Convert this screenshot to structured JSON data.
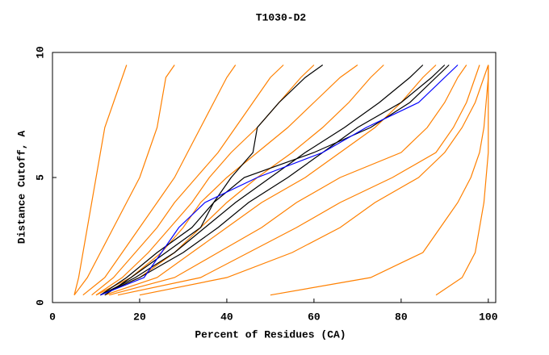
{
  "chart_data": {
    "type": "line",
    "title": "T1030-D2",
    "x_label": "Percent of Residues (CA)",
    "y_label": "Distance Cutoff, A",
    "xlim": [
      0,
      101.7
    ],
    "ylim": [
      0,
      10
    ],
    "xticks": [
      0,
      20,
      40,
      60,
      80,
      100
    ],
    "yticks": [
      0,
      5,
      10
    ],
    "grid": false,
    "series": [
      {
        "color": "#ff8000",
        "x": [
          5,
          6,
          7,
          8,
          9,
          10,
          11,
          12,
          14,
          16,
          17
        ],
        "values": [
          0.3,
          1,
          2,
          3,
          4,
          5,
          6,
          7,
          8,
          9,
          9.5
        ]
      },
      {
        "color": "#ff8000",
        "x": [
          5,
          8,
          11,
          14,
          17,
          20,
          22,
          24,
          25,
          26,
          28
        ],
        "values": [
          0.3,
          1,
          2,
          3,
          4,
          5,
          6,
          7,
          8,
          9,
          9.5
        ]
      },
      {
        "color": "#ff8000",
        "x": [
          7,
          12,
          16,
          20,
          24,
          28,
          31,
          34,
          37,
          40,
          42
        ],
        "values": [
          0.3,
          1,
          2,
          3,
          4,
          5,
          6,
          7,
          8,
          9,
          9.5
        ]
      },
      {
        "color": "#ff8000",
        "x": [
          9,
          14,
          19,
          24,
          28,
          33,
          38,
          42,
          46,
          50,
          53
        ],
        "values": [
          0.3,
          1,
          2,
          3,
          4,
          5,
          6,
          7,
          8,
          9,
          9.5
        ]
      },
      {
        "color": "#ff8000",
        "x": [
          10,
          16,
          22,
          27,
          32,
          36,
          41,
          47,
          52,
          57,
          60
        ],
        "values": [
          0.3,
          1,
          2,
          3,
          4,
          5,
          6,
          7,
          8,
          9,
          9.5
        ]
      },
      {
        "color": "#ff8000",
        "x": [
          10,
          18,
          25,
          30,
          34,
          40,
          47,
          54,
          60,
          66,
          70
        ],
        "values": [
          0.3,
          1,
          2,
          3,
          4,
          5,
          6,
          7,
          8,
          9,
          9.5
        ]
      },
      {
        "color": "#ff8000",
        "x": [
          11,
          20,
          28,
          34,
          40,
          47,
          55,
          62,
          68,
          73,
          76
        ],
        "values": [
          0.3,
          1,
          2,
          3,
          4,
          5,
          6,
          7,
          8,
          9,
          9.5
        ]
      },
      {
        "color": "#ff8000",
        "x": [
          12,
          24,
          32,
          40,
          48,
          58,
          66,
          74,
          80,
          85,
          88
        ],
        "values": [
          0.3,
          1,
          2,
          3,
          4,
          5,
          6,
          7,
          8,
          9,
          9.5
        ]
      },
      {
        "color": "#ff8000",
        "x": [
          13,
          28,
          38,
          48,
          56,
          66,
          80,
          86,
          90,
          93,
          95
        ],
        "values": [
          0.3,
          1,
          2,
          3,
          4,
          5,
          6,
          7,
          8,
          9,
          9.5
        ]
      },
      {
        "color": "#ff8000",
        "x": [
          15,
          34,
          45,
          56,
          66,
          78,
          88,
          92,
          95,
          97,
          98
        ],
        "values": [
          0.3,
          1,
          2,
          3,
          4,
          5,
          6,
          7,
          8,
          9,
          9.5
        ]
      },
      {
        "color": "#ff8000",
        "x": [
          20,
          40,
          55,
          66,
          74,
          84,
          90,
          94,
          97,
          99,
          100
        ],
        "values": [
          0.3,
          1,
          2,
          3,
          4,
          5,
          6,
          7,
          8,
          9,
          9.5
        ]
      },
      {
        "color": "#ff8000",
        "x": [
          50,
          73,
          85,
          89,
          93,
          96,
          98,
          99,
          99.5,
          100,
          100
        ],
        "values": [
          0.3,
          1,
          2,
          3,
          4,
          5,
          6,
          7,
          8,
          9,
          9.5
        ]
      },
      {
        "color": "#ff8000",
        "x": [
          88,
          94,
          97,
          98,
          99,
          99.5,
          100,
          100,
          100,
          100,
          100
        ],
        "values": [
          0.3,
          1,
          2,
          3,
          4,
          5,
          6,
          7,
          8,
          9,
          9.5
        ]
      },
      {
        "color": "#000000",
        "x": [
          11,
          17,
          24,
          32,
          37,
          41,
          46,
          47,
          52,
          58,
          62
        ],
        "values": [
          0.3,
          1,
          2,
          3,
          4,
          5,
          6,
          7,
          8,
          9,
          9.5
        ]
      },
      {
        "color": "#000000",
        "x": [
          11,
          19,
          28,
          35,
          42,
          50,
          58,
          67,
          75,
          82,
          85
        ],
        "values": [
          0.3,
          1,
          2,
          3,
          4,
          5,
          6,
          7,
          8,
          9,
          9.5
        ]
      },
      {
        "color": "#000000",
        "x": [
          11,
          20,
          30,
          38,
          45,
          54,
          62,
          70,
          80,
          87,
          90
        ],
        "values": [
          0.3,
          1,
          2,
          3,
          4,
          5,
          6,
          7,
          8,
          9,
          9.5
        ]
      },
      {
        "color": "#000000",
        "x": [
          12,
          18,
          26,
          34,
          37,
          44,
          60,
          73,
          82,
          88,
          91
        ],
        "values": [
          0.3,
          1,
          2,
          3,
          4,
          5,
          6,
          7,
          8,
          9,
          9.5
        ]
      },
      {
        "color": "#0000ff",
        "x": [
          11,
          21,
          25,
          29,
          35,
          47,
          62,
          72,
          84,
          90,
          93
        ],
        "values": [
          0.3,
          1,
          2,
          3,
          4,
          5,
          6,
          7,
          8,
          9,
          9.5
        ]
      }
    ]
  }
}
